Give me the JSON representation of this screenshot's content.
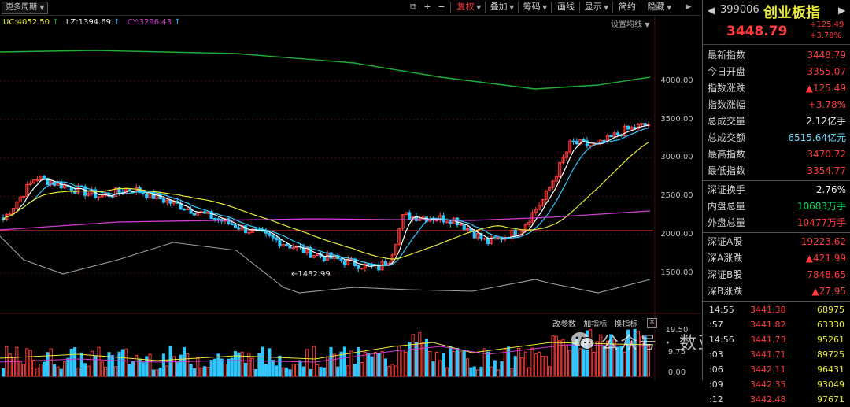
{
  "toolbar": {
    "period": "更多周期",
    "buttons": [
      "复权",
      "叠加",
      "筹码",
      "画线",
      "显示",
      "简约",
      "隐藏"
    ],
    "active": "复权"
  },
  "ma_legend": {
    "uc_label": "UC:4052.50",
    "lz_label": "LZ:1394.69",
    "cy_label": "CY:3296.43"
  },
  "setting_link": "设置均线",
  "price_ticks": [
    "4000.00",
    "3500.00",
    "3000.00",
    "2500.00",
    "2000.00",
    "1500.00"
  ],
  "low_marker": "←1482.99",
  "volume_toolbar": [
    "改参数",
    "加指标",
    "换指标"
  ],
  "volume_ticks": [
    "19.50",
    "9.75",
    "0.00"
  ],
  "quote": {
    "code": "399006",
    "name": "创业板指",
    "price": "3448.79",
    "change": "+125.49",
    "change_pct": "+3.78%",
    "rows_a": [
      {
        "label": "最新指数",
        "value": "3448.79",
        "color": "#ff3b3b"
      },
      {
        "label": "今日开盘",
        "value": "3355.07",
        "color": "#ff3b3b"
      },
      {
        "label": "指数涨跌",
        "value": "▲125.49",
        "color": "#ff3b3b"
      },
      {
        "label": "指数涨幅",
        "value": "+3.78%",
        "color": "#ff3b3b"
      },
      {
        "label": "总成交量",
        "value": "2.12亿手",
        "color": "#e8e8e8"
      },
      {
        "label": "总成交额",
        "value": "6515.64亿元",
        "color": "#66d9ff"
      },
      {
        "label": "最高指数",
        "value": "3470.72",
        "color": "#ff3b3b"
      },
      {
        "label": "最低指数",
        "value": "3354.77",
        "color": "#ff3b3b"
      }
    ],
    "rows_b": [
      {
        "label": "深证换手",
        "value": "2.76%",
        "color": "#e8e8e8"
      },
      {
        "label": "内盘总量",
        "value": "10683万手",
        "color": "#00e060"
      },
      {
        "label": "外盘总量",
        "value": "10477万手",
        "color": "#ff3b3b"
      }
    ],
    "rows_c": [
      {
        "label": "深证A股",
        "value": "19223.62",
        "color": "#ff3b3b"
      },
      {
        "label": "深A涨跌",
        "value": "▲421.99",
        "color": "#ff3b3b"
      },
      {
        "label": "深证B股",
        "value": "7848.65",
        "color": "#ff3b3b"
      },
      {
        "label": "深B涨跌",
        "value": "▲27.95",
        "color": "#ff3b3b"
      }
    ],
    "ticks": [
      {
        "time": "14:55",
        "price": "3441.38",
        "vol": "68975"
      },
      {
        "time": ":57",
        "price": "3441.82",
        "vol": "63330"
      },
      {
        "time": "14:56",
        "price": "3441.73",
        "vol": "95261"
      },
      {
        "time": ":03",
        "price": "3441.71",
        "vol": "89725"
      },
      {
        "time": ":06",
        "price": "3442.11",
        "vol": "96431"
      },
      {
        "time": ":09",
        "price": "3442.35",
        "vol": "93049"
      },
      {
        "time": ":12",
        "price": "3442.48",
        "vol": "97671"
      }
    ]
  },
  "watermark": "公众号 · 数亚马总舵主",
  "colors": {
    "up": "#ff3b3b",
    "down": "#2ec8ff",
    "ma_white": "#ffffff",
    "ma_yellow": "#e8e83a",
    "ma_magenta": "#d23cd2",
    "ma_green": "#1fae3a",
    "ma_gray": "#9aa0a6"
  }
}
